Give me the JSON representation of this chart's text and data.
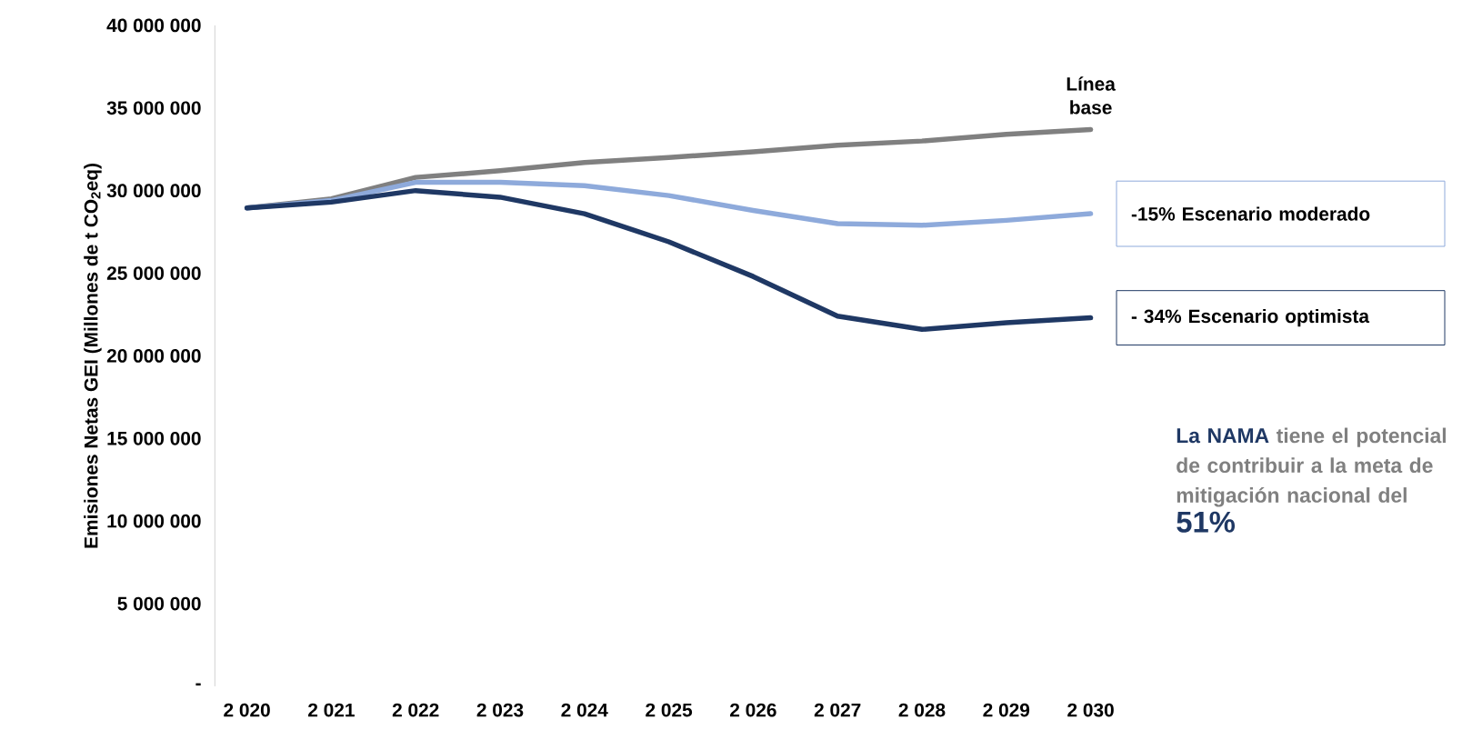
{
  "chart_data": {
    "type": "line",
    "ylabel": "Emisiones Netas GEI (Millones de t CO$_{2}$eq)",
    "categories": [
      "2 020",
      "2 021",
      "2 022",
      "2 023",
      "2 024",
      "2 025",
      "2 026",
      "2 027",
      "2 028",
      "2 029",
      "2 030"
    ],
    "ylim": [
      0,
      40000000
    ],
    "yticks": [
      {
        "value": 0,
        "label": "-"
      },
      {
        "value": 5000000,
        "label": "5 000 000"
      },
      {
        "value": 10000000,
        "label": "10 000 000"
      },
      {
        "value": 15000000,
        "label": "15 000 000"
      },
      {
        "value": 20000000,
        "label": "20 000 000"
      },
      {
        "value": 25000000,
        "label": "25 000 000"
      },
      {
        "value": 30000000,
        "label": "30 000 000"
      },
      {
        "value": 35000000,
        "label": "35 000 000"
      },
      {
        "value": 40000000,
        "label": "40 000 000"
      }
    ],
    "series": [
      {
        "name": "Línea base",
        "color": "#808080",
        "values": [
          28950000,
          29500000,
          30800000,
          31200000,
          31700000,
          32000000,
          32350000,
          32750000,
          33000000,
          33400000,
          33700000
        ]
      },
      {
        "name": "-15% Escenario moderado",
        "color": "#8eaadb",
        "values": [
          28950000,
          29400000,
          30500000,
          30500000,
          30300000,
          29700000,
          28800000,
          28000000,
          27900000,
          28200000,
          28600000
        ]
      },
      {
        "name": "- 34% Escenario optimista",
        "color": "#1f3864",
        "values": [
          28950000,
          29300000,
          30000000,
          29600000,
          28600000,
          26900000,
          24800000,
          22400000,
          21600000,
          22000000,
          22300000
        ]
      }
    ],
    "annotations": [
      "La NAMA",
      "tiene el potencial de contribuir a la meta de mitigación nacional del",
      "51%"
    ],
    "marker": "none",
    "line_style": "solid",
    "grid": false
  }
}
